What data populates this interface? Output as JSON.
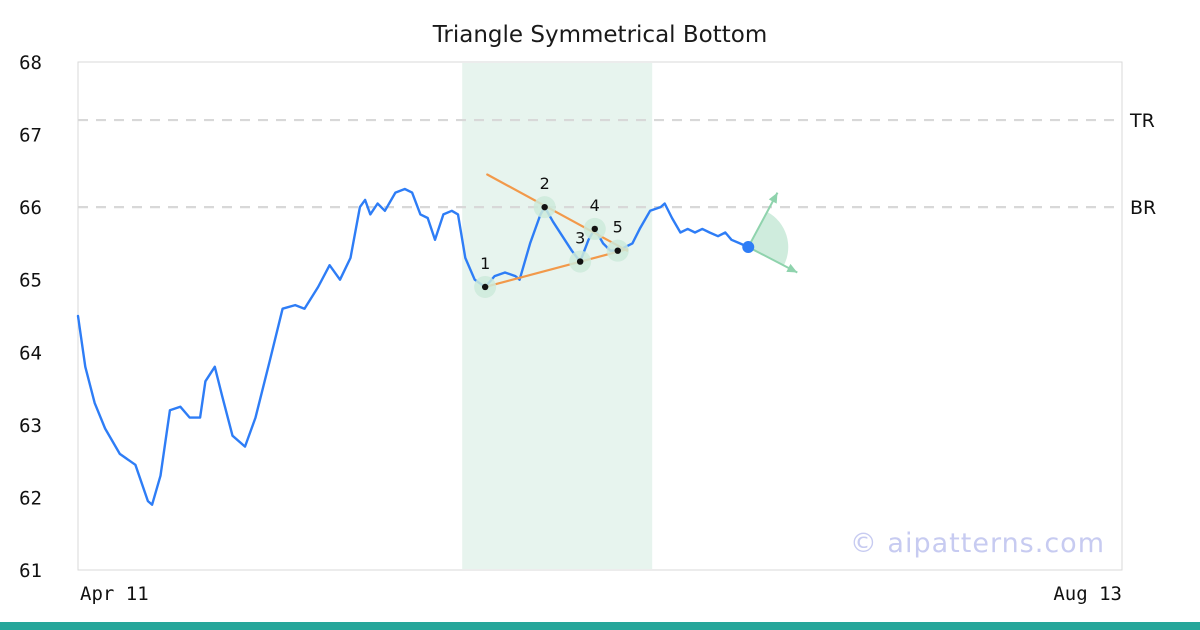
{
  "title": "Triangle Symmetrical Bottom",
  "watermark": "© aipatterns.com",
  "colors": {
    "price_line": "#2e7df6",
    "pattern_line": "#f2994a",
    "band_fill": "#e7f4ee",
    "level_line": "#d8d8d8",
    "halo_fill": "#cdeadb",
    "arrow_color": "#8fd3ad",
    "wedge_fill": "#bfe6d2",
    "projection_dot": "#2e7df6",
    "point_dot": "#111111",
    "bottom_bar": "#26a69a",
    "watermark_color": "#c7cbf1",
    "border": "#d9d9d9",
    "text": "#111111"
  },
  "chart_data": {
    "type": "line",
    "title": "Triangle Symmetrical Bottom",
    "x_range": [
      0,
      100
    ],
    "y_range": [
      61,
      68
    ],
    "y_ticks": [
      61,
      62,
      63,
      64,
      65,
      66,
      67,
      68
    ],
    "x_tick_labels": {
      "left": "Apr 11",
      "right": "Aug 13"
    },
    "levels": [
      {
        "label": "TR",
        "value": 67.2
      },
      {
        "label": "BR",
        "value": 66.0
      }
    ],
    "highlight_band_x": [
      36.8,
      55.0
    ],
    "series": [
      {
        "name": "price",
        "x": [
          0,
          0.7,
          1.6,
          2.6,
          4.0,
          5.5,
          6.7,
          7.1,
          7.9,
          8.8,
          9.8,
          10.7,
          11.7,
          12.2,
          13.1,
          13.8,
          14.8,
          16.0,
          17.0,
          18.4,
          19.6,
          20.8,
          21.7,
          23.0,
          24.1,
          25.1,
          26.1,
          27.0,
          27.5,
          28.0,
          28.7,
          29.4,
          30.4,
          31.3,
          32.0,
          32.8,
          33.5,
          34.2,
          35.0,
          35.8,
          36.4,
          37.1,
          38.0,
          39.0,
          39.9,
          40.9,
          41.9,
          42.3,
          43.3,
          44.3,
          44.7,
          45.5,
          46.4,
          47.3,
          48.1,
          48.9,
          49.5,
          50.3,
          51.0,
          51.7,
          52.4,
          53.1,
          53.8,
          54.8,
          55.8,
          56.2,
          56.9,
          57.7,
          58.4,
          59.1,
          59.8,
          60.5,
          61.3,
          62.0,
          62.6,
          63.4,
          64.2
        ],
        "y": [
          64.5,
          63.8,
          63.3,
          62.95,
          62.6,
          62.45,
          61.95,
          61.9,
          62.3,
          63.2,
          63.25,
          63.1,
          63.1,
          63.6,
          63.8,
          63.4,
          62.85,
          62.7,
          63.1,
          63.9,
          64.6,
          64.65,
          64.6,
          64.9,
          65.2,
          65.0,
          65.3,
          66.0,
          66.1,
          65.9,
          66.05,
          65.95,
          66.2,
          66.25,
          66.2,
          65.9,
          65.85,
          65.55,
          65.9,
          65.95,
          65.9,
          65.3,
          65.0,
          64.9,
          65.05,
          65.1,
          65.05,
          65.0,
          65.5,
          65.9,
          66.0,
          65.8,
          65.6,
          65.4,
          65.25,
          65.55,
          65.7,
          65.5,
          65.4,
          65.4,
          65.45,
          65.5,
          65.7,
          65.95,
          66.0,
          66.05,
          65.85,
          65.65,
          65.7,
          65.65,
          65.7,
          65.65,
          65.6,
          65.65,
          65.55,
          65.5,
          65.45
        ]
      }
    ],
    "pattern_points": [
      {
        "label": "1",
        "x": 39.0,
        "y": 64.9
      },
      {
        "label": "2",
        "x": 44.7,
        "y": 66.0
      },
      {
        "label": "3",
        "x": 48.1,
        "y": 65.25
      },
      {
        "label": "4",
        "x": 49.5,
        "y": 65.7
      },
      {
        "label": "5",
        "x": 51.7,
        "y": 65.4
      }
    ],
    "pattern_lines": [
      {
        "x1": 39.2,
        "y1": 66.45,
        "x2": 52.6,
        "y2": 65.4
      },
      {
        "x1": 39.0,
        "y1": 64.9,
        "x2": 52.6,
        "y2": 65.42
      }
    ],
    "projection": {
      "dot": {
        "x": 64.2,
        "y": 65.45
      },
      "arrows": [
        {
          "x": 67.0,
          "y": 66.2
        },
        {
          "x": 68.9,
          "y": 65.1
        }
      ]
    }
  }
}
